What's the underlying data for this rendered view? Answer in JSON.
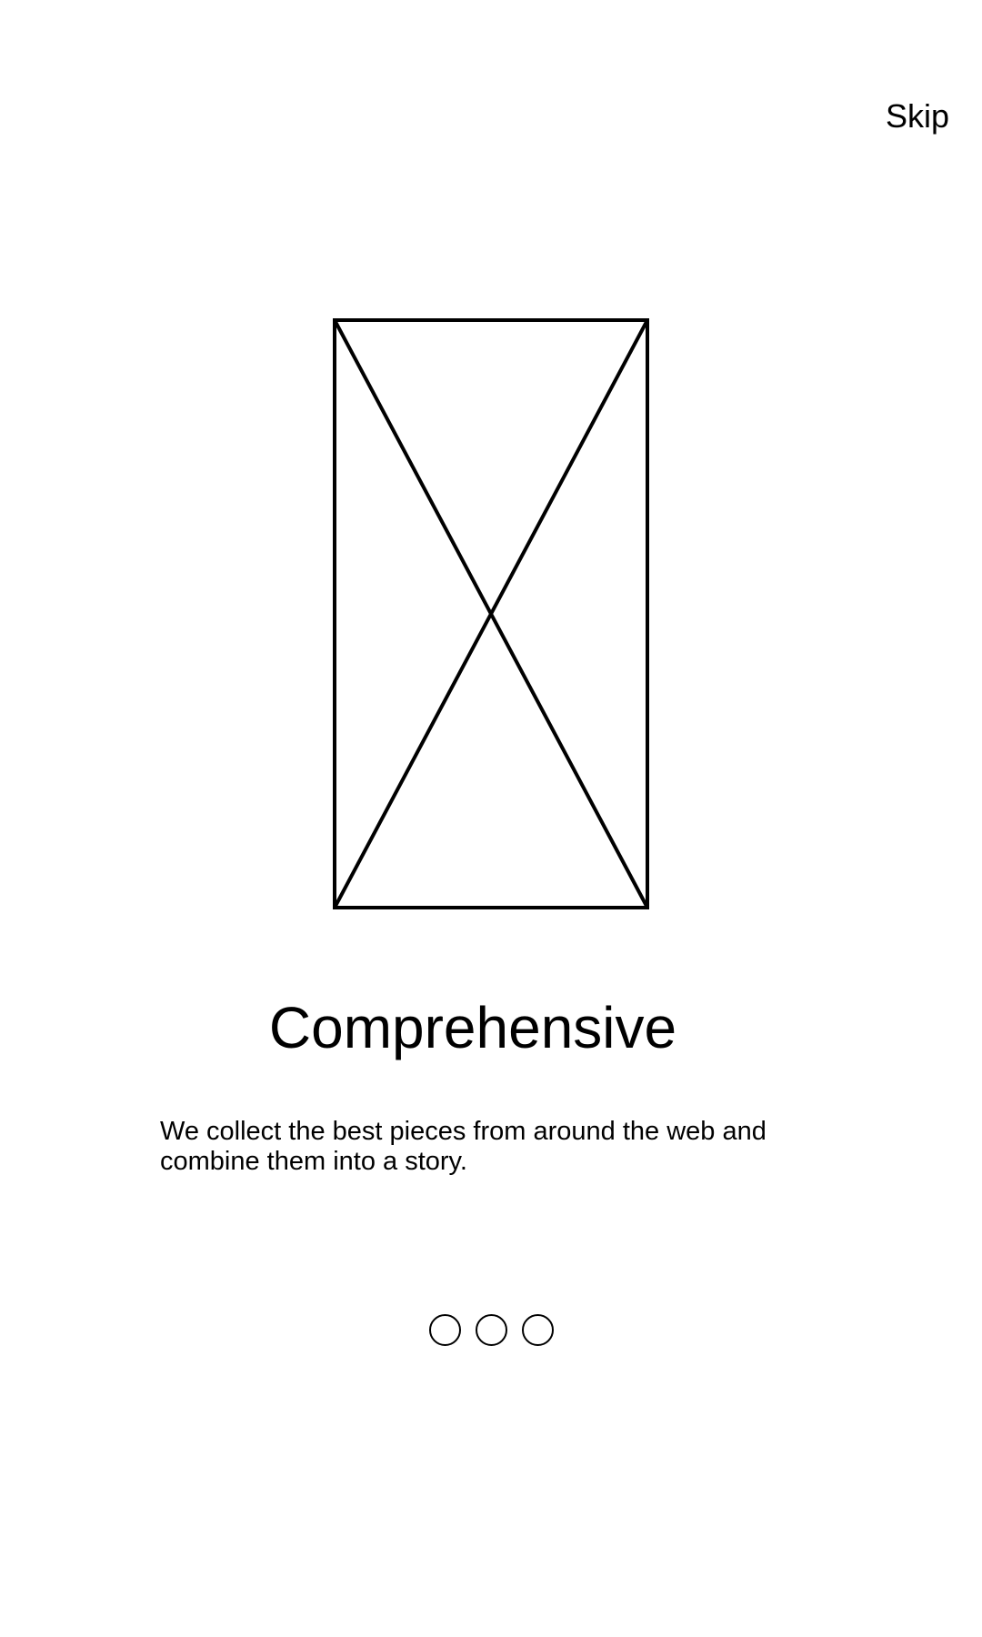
{
  "header": {
    "skip_label": "Skip"
  },
  "illustration": {
    "icon": "image-placeholder-icon"
  },
  "slide": {
    "title": "Comprehensive",
    "description": "We collect the best pieces from around the web and combine them into a story."
  },
  "pager": {
    "dots": [
      {
        "active": false
      },
      {
        "active": false
      },
      {
        "active": false
      }
    ]
  },
  "colors": {
    "background": "#ffffff",
    "foreground": "#000000"
  }
}
